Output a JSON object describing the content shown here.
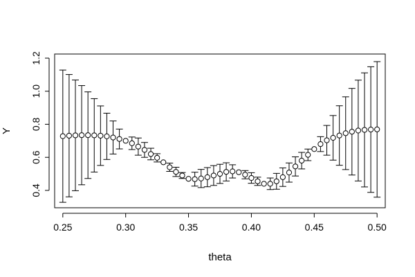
{
  "chart_data": {
    "type": "scatter",
    "title": "",
    "xlabel": "theta",
    "ylabel": "Y",
    "xlim": [
      0.2435,
      0.5065
    ],
    "ylim": [
      0.295,
      1.225
    ],
    "xticks": [
      0.25,
      0.3,
      0.35,
      0.4,
      0.45,
      0.5
    ],
    "xtick_labels": [
      "0.25",
      "0.30",
      "0.35",
      "0.40",
      "0.45",
      "0.50"
    ],
    "yticks": [
      0.4,
      0.6,
      0.8,
      1.0,
      1.2
    ],
    "ytick_labels": [
      "0.4",
      "0.6",
      "0.8",
      "1.0",
      "1.2"
    ],
    "grid": false,
    "marker": "open-circle",
    "error_bars": true,
    "series": [
      {
        "name": "Y",
        "x": [
          0.25,
          0.255,
          0.26,
          0.265,
          0.27,
          0.275,
          0.28,
          0.285,
          0.29,
          0.295,
          0.3,
          0.305,
          0.31,
          0.315,
          0.32,
          0.325,
          0.33,
          0.335,
          0.34,
          0.345,
          0.35,
          0.355,
          0.36,
          0.365,
          0.37,
          0.375,
          0.38,
          0.385,
          0.39,
          0.395,
          0.4,
          0.405,
          0.41,
          0.415,
          0.42,
          0.425,
          0.43,
          0.435,
          0.44,
          0.445,
          0.45,
          0.455,
          0.46,
          0.465,
          0.47,
          0.475,
          0.48,
          0.485,
          0.49,
          0.495,
          0.5
        ],
        "y": [
          0.728,
          0.731,
          0.733,
          0.734,
          0.734,
          0.733,
          0.731,
          0.727,
          0.72,
          0.711,
          0.7,
          0.685,
          0.665,
          0.645,
          0.62,
          0.597,
          0.57,
          0.54,
          0.512,
          0.49,
          0.47,
          0.468,
          0.472,
          0.48,
          0.49,
          0.5,
          0.512,
          0.515,
          0.51,
          0.495,
          0.475,
          0.455,
          0.44,
          0.44,
          0.455,
          0.48,
          0.508,
          0.545,
          0.58,
          0.615,
          0.65,
          0.68,
          0.703,
          0.718,
          0.732,
          0.746,
          0.755,
          0.762,
          0.766,
          0.768,
          0.769
        ],
        "error": [
          0.4,
          0.37,
          0.335,
          0.3,
          0.262,
          0.222,
          0.18,
          0.14,
          0.1,
          0.06,
          0.0,
          0.038,
          0.052,
          0.045,
          0.035,
          0.025,
          0.0,
          0.025,
          0.028,
          0.018,
          0.0,
          0.042,
          0.055,
          0.058,
          0.06,
          0.058,
          0.055,
          0.04,
          0.0,
          0.025,
          0.032,
          0.025,
          0.0,
          0.035,
          0.048,
          0.056,
          0.058,
          0.058,
          0.05,
          0.035,
          0.0,
          0.045,
          0.09,
          0.135,
          0.18,
          0.22,
          0.262,
          0.305,
          0.345,
          0.38,
          0.41
        ]
      }
    ]
  }
}
